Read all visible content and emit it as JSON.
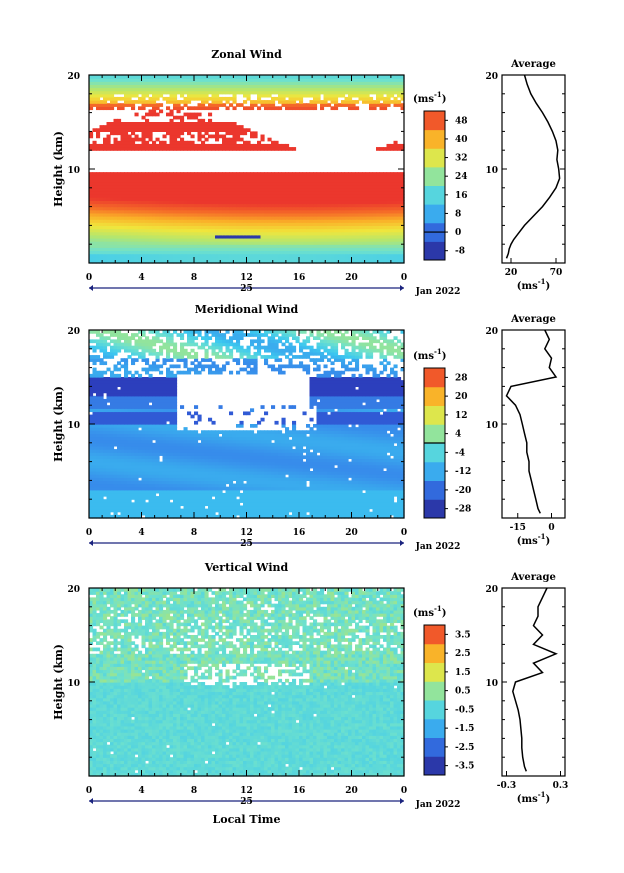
{
  "chart_data": [
    {
      "type": "heatmap",
      "title": "Zonal Wind",
      "ylabel": "Height (km)",
      "ylim": [
        0,
        20
      ],
      "y_ticks": [
        "20",
        "10"
      ],
      "x_ticks": [
        "0",
        "4",
        "8",
        "12",
        "16",
        "20",
        "0"
      ],
      "date_label": "25",
      "month_label": "Jan 2022",
      "colorbar_unit": "(ms",
      "colorbar_unit_exp": "-1",
      "colorbar_unit_close": ")",
      "colorbar_ticks": [
        "48",
        "40",
        "32",
        "24",
        "16",
        "8",
        "0",
        "-8"
      ],
      "colorbar_range": [
        -12,
        52
      ],
      "zero_line": 0,
      "profile_title": "Average",
      "profile_x_ticks": [
        "20",
        "70"
      ],
      "profile_xlim": [
        10,
        80
      ],
      "profile_x_tick_values": [
        20,
        70
      ],
      "profile_xlabel": "(ms",
      "profile_xlabel_exp": "-1",
      "profile_xlabel_close": ")",
      "profile": {
        "heights": [
          0.5,
          1,
          1.5,
          2,
          2.5,
          3,
          4,
          5,
          6,
          7,
          8,
          9,
          10,
          11,
          12,
          13,
          14,
          15,
          16,
          17,
          18,
          19,
          20
        ],
        "values": [
          15,
          17,
          18,
          20,
          23,
          27,
          35,
          45,
          55,
          63,
          70,
          74,
          73,
          71,
          72,
          70,
          66,
          61,
          55,
          48,
          42,
          38,
          35
        ]
      }
    },
    {
      "type": "heatmap",
      "title": "Meridional Wind",
      "ylabel": "Height (km)",
      "ylim": [
        0,
        20
      ],
      "y_ticks": [
        "20",
        "10"
      ],
      "x_ticks": [
        "0",
        "4",
        "8",
        "12",
        "16",
        "20",
        "0"
      ],
      "date_label": "25",
      "month_label": "Jan 2022",
      "colorbar_unit": "(ms",
      "colorbar_unit_exp": "-1",
      "colorbar_unit_close": ")",
      "colorbar_ticks": [
        "28",
        "20",
        "12",
        "4",
        "-4",
        "-12",
        "-20",
        "-28"
      ],
      "colorbar_range": [
        -32,
        32
      ],
      "zero_line": 0,
      "profile_title": "Average",
      "profile_x_ticks": [
        "-15",
        "0"
      ],
      "profile_xlim": [
        -22,
        6
      ],
      "profile_x_tick_values": [
        -15,
        0
      ],
      "profile_xlabel": "(ms",
      "profile_xlabel_exp": "-1",
      "profile_xlabel_close": ")",
      "profile": {
        "heights": [
          0.5,
          1,
          2,
          3,
          4,
          5,
          6,
          7,
          8,
          9,
          10,
          11,
          12,
          13,
          14,
          15,
          16,
          17,
          18,
          19,
          20
        ],
        "values": [
          -5,
          -6,
          -7,
          -8,
          -9,
          -10,
          -10,
          -11,
          -11,
          -12,
          -13,
          -14,
          -16,
          -20,
          -18,
          2,
          -1,
          0,
          -3,
          -1,
          -3
        ]
      }
    },
    {
      "type": "heatmap",
      "title": "Vertical Wind",
      "ylabel": "Height (km)",
      "ylim": [
        0,
        20
      ],
      "y_ticks": [
        "20",
        "10"
      ],
      "x_ticks": [
        "0",
        "4",
        "8",
        "12",
        "16",
        "20",
        "0"
      ],
      "date_label": "25",
      "month_label": "Jan 2022",
      "xlabel": "Local Time",
      "colorbar_unit": "(ms",
      "colorbar_unit_exp": "-1",
      "colorbar_unit_close": ")",
      "colorbar_ticks": [
        "3.5",
        "2.5",
        "1.5",
        "0.5",
        "-0.5",
        "-1.5",
        "-2.5",
        "-3.5"
      ],
      "colorbar_range": [
        -4,
        4
      ],
      "zero_line": null,
      "profile_title": "Average",
      "profile_x_ticks": [
        "-0.3",
        "0.3"
      ],
      "profile_xlim": [
        -0.35,
        0.35
      ],
      "profile_x_tick_values": [
        -0.3,
        0.3
      ],
      "profile_xlabel": "(ms",
      "profile_xlabel_exp": "-1",
      "profile_xlabel_close": ")",
      "profile": {
        "heights": [
          0.5,
          1,
          2,
          3,
          4,
          5,
          6,
          7,
          8,
          9,
          10,
          11,
          12,
          13,
          14,
          15,
          16,
          17,
          18,
          19,
          20
        ],
        "values": [
          -0.08,
          -0.1,
          -0.12,
          -0.13,
          -0.13,
          -0.14,
          -0.15,
          -0.17,
          -0.2,
          -0.23,
          -0.2,
          0.1,
          0.0,
          0.25,
          0.0,
          0.1,
          0.0,
          0.05,
          0.05,
          0.1,
          0.15
        ]
      }
    }
  ]
}
